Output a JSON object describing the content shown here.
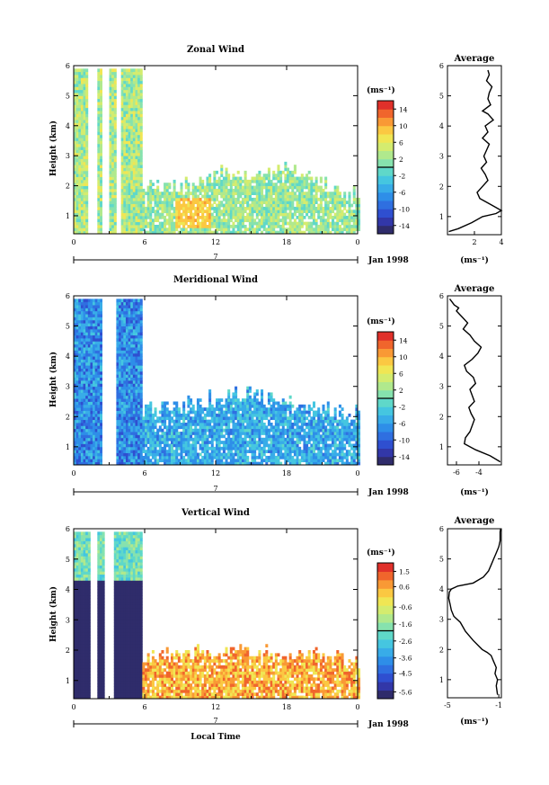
{
  "figure": {
    "xlabel": "Local Time",
    "date_label": "Jan 1998",
    "time_axis_marker": "7"
  },
  "chart_data": [
    {
      "type": "heatmap",
      "id": "zonal",
      "title": "Zonal Wind",
      "ylabel": "Height (km)",
      "xlabel": "Local Time",
      "x_ticks": [
        "0",
        "6",
        "12",
        "18",
        "0"
      ],
      "x_tick_values": [
        0,
        6,
        12,
        18,
        24
      ],
      "x_minor_ticks": [
        3,
        9,
        15,
        21
      ],
      "x_range": [
        0,
        24
      ],
      "y_ticks": [
        "1",
        "2",
        "3",
        "4",
        "5",
        "6"
      ],
      "y_tick_values": [
        1,
        2,
        3,
        4,
        5,
        6
      ],
      "y_range": [
        0.4,
        6
      ],
      "colorbar": {
        "unit": "(ms⁻¹)",
        "ticks": [
          "14",
          "10",
          "6",
          "2",
          "-2",
          "-6",
          "-10",
          "-14"
        ],
        "tick_values": [
          14,
          10,
          6,
          2,
          -2,
          -6,
          -10,
          -14
        ],
        "range": [
          -16,
          16
        ]
      },
      "typical_value_burst": 3,
      "typical_value_later": 2,
      "warm_patch": {
        "t_start": 8.5,
        "t_end": 11.5,
        "h_start": 0.6,
        "h_end": 1.6,
        "value": 9
      },
      "bursts": [
        [
          0.0,
          1.2
        ],
        [
          1.8,
          2.3
        ],
        [
          3.0,
          3.6
        ],
        [
          4.0,
          5.8
        ]
      ],
      "burst_top": 5.8,
      "later_top_profile": {
        "t": [
          6,
          9,
          12,
          15,
          18,
          21,
          24
        ],
        "h": [
          1.9,
          1.9,
          2.4,
          2.3,
          2.5,
          2.0,
          1.6
        ]
      }
    },
    {
      "type": "heatmap",
      "id": "meridional",
      "title": "Meridional Wind",
      "ylabel": "Height (km)",
      "xlabel": "Local Time",
      "x_ticks": [
        "0",
        "6",
        "12",
        "18",
        "0"
      ],
      "x_tick_values": [
        0,
        6,
        12,
        18,
        24
      ],
      "x_minor_ticks": [
        3,
        9,
        15,
        21
      ],
      "x_range": [
        0,
        24
      ],
      "y_ticks": [
        "1",
        "2",
        "3",
        "4",
        "5",
        "6"
      ],
      "y_tick_values": [
        1,
        2,
        3,
        4,
        5,
        6
      ],
      "y_range": [
        0.4,
        6
      ],
      "colorbar": {
        "unit": "(ms⁻¹)",
        "ticks": [
          "14",
          "10",
          "6",
          "2",
          "-2",
          "-6",
          "-10",
          "-14"
        ],
        "tick_values": [
          14,
          10,
          6,
          2,
          -2,
          -6,
          -10,
          -14
        ],
        "range": [
          -16,
          16
        ]
      },
      "typical_value_burst": -7,
      "typical_value_later": -5,
      "bursts": [
        [
          0.0,
          2.4
        ],
        [
          3.5,
          5.8
        ]
      ],
      "burst_top": 5.8,
      "later_top_profile": {
        "t": [
          6,
          9,
          12,
          15,
          18,
          21,
          24
        ],
        "h": [
          2.2,
          2.3,
          2.6,
          2.7,
          2.4,
          2.2,
          2.0
        ]
      }
    },
    {
      "type": "heatmap",
      "id": "vertical",
      "title": "Vertical Wind",
      "ylabel": "Height (km)",
      "xlabel": "Local Time",
      "x_ticks": [
        "0",
        "6",
        "12",
        "18",
        "0"
      ],
      "x_tick_values": [
        0,
        6,
        12,
        18,
        24
      ],
      "x_minor_ticks": [
        3,
        9,
        15,
        21
      ],
      "x_range": [
        0,
        24
      ],
      "y_ticks": [
        "1",
        "2",
        "3",
        "4",
        "5",
        "6"
      ],
      "y_tick_values": [
        1,
        2,
        3,
        4,
        5,
        6
      ],
      "y_range": [
        0.4,
        6
      ],
      "colorbar": {
        "unit": "(ms⁻¹)",
        "ticks": [
          "1.5",
          "0.6",
          "-0.6",
          "-1.6",
          "-2.6",
          "-3.6",
          "-4.5",
          "-5.6"
        ],
        "tick_values": [
          1.5,
          0.6,
          -0.6,
          -1.6,
          -2.6,
          -3.6,
          -4.5,
          -5.6
        ],
        "range": [
          -6.0,
          2.0
        ]
      },
      "typical_value_burst": -5.9,
      "typical_value_upper": -2.0,
      "typical_value_later": 0.3,
      "bursts": [
        [
          0.0,
          1.4
        ],
        [
          1.9,
          2.5
        ],
        [
          3.4,
          5.8
        ]
      ],
      "burst_top": 5.8,
      "later_top_profile": {
        "t": [
          6,
          9,
          12,
          15,
          18,
          21,
          24
        ],
        "h": [
          1.7,
          1.8,
          1.9,
          1.9,
          1.8,
          1.8,
          1.6
        ]
      }
    },
    {
      "type": "line",
      "id": "zonal_avg",
      "title": "Average",
      "xlabel": "(ms⁻¹)",
      "x_ticks": [
        "2",
        "4"
      ],
      "x_tick_values": [
        2,
        4
      ],
      "x_range": [
        0,
        4
      ],
      "y_ticks": [
        "1",
        "2",
        "3",
        "4",
        "5",
        "6"
      ],
      "y_tick_values": [
        1,
        2,
        3,
        4,
        5,
        6
      ],
      "y_range": [
        0.4,
        6
      ],
      "series": [
        {
          "x": [
            0.1,
            0.8,
            1.8,
            2.6,
            3.6,
            4.0,
            3.2,
            2.4,
            2.2,
            2.6,
            3.0,
            2.8,
            2.5,
            2.9,
            2.7,
            2.9,
            3.1,
            2.6,
            3.0,
            2.8,
            3.4,
            3.0,
            2.6,
            3.2,
            3.0,
            3.1,
            3.3,
            2.9,
            3.1,
            3.0
          ],
          "y": [
            0.5,
            0.6,
            0.8,
            1.0,
            1.1,
            1.2,
            1.4,
            1.6,
            1.8,
            2.0,
            2.2,
            2.4,
            2.6,
            2.8,
            3.0,
            3.2,
            3.4,
            3.6,
            3.8,
            4.0,
            4.2,
            4.4,
            4.5,
            4.7,
            4.9,
            5.1,
            5.3,
            5.5,
            5.7,
            5.85
          ]
        }
      ]
    },
    {
      "type": "line",
      "id": "meridional_avg",
      "title": "Average",
      "xlabel": "(ms⁻¹)",
      "x_ticks": [
        "-6",
        "-4"
      ],
      "x_tick_values": [
        -6,
        -4
      ],
      "x_range": [
        -6.8,
        -2.0
      ],
      "y_ticks": [
        "1",
        "2",
        "3",
        "4",
        "5",
        "6"
      ],
      "y_tick_values": [
        1,
        2,
        3,
        4,
        5,
        6
      ],
      "y_range": [
        0.4,
        6
      ],
      "series": [
        {
          "x": [
            -2.1,
            -3.0,
            -4.3,
            -5.3,
            -5.2,
            -4.8,
            -4.6,
            -4.4,
            -4.7,
            -4.9,
            -4.4,
            -4.6,
            -4.8,
            -4.3,
            -4.5,
            -5.1,
            -5.3,
            -4.6,
            -4.1,
            -3.8,
            -4.4,
            -4.8,
            -5.4,
            -5.0,
            -5.5,
            -6.0,
            -5.8,
            -6.2,
            -6.4,
            -6.6
          ],
          "y": [
            0.5,
            0.7,
            0.9,
            1.1,
            1.3,
            1.5,
            1.7,
            1.9,
            2.1,
            2.3,
            2.5,
            2.7,
            2.9,
            3.1,
            3.3,
            3.5,
            3.7,
            3.9,
            4.1,
            4.3,
            4.5,
            4.7,
            4.9,
            5.1,
            5.3,
            5.5,
            5.6,
            5.7,
            5.8,
            5.9
          ]
        }
      ]
    },
    {
      "type": "line",
      "id": "vertical_avg",
      "title": "Average",
      "xlabel": "(ms⁻¹)",
      "x_ticks": [
        "-5",
        "-1"
      ],
      "x_tick_values": [
        -5,
        -1
      ],
      "x_range": [
        -5.0,
        -0.8
      ],
      "y_ticks": [
        "1",
        "2",
        "3",
        "4",
        "5",
        "6"
      ],
      "y_tick_values": [
        1,
        2,
        3,
        4,
        5,
        6
      ],
      "y_range": [
        0.4,
        6
      ],
      "series": [
        {
          "x": [
            -1.1,
            -1.2,
            -1.1,
            -1.3,
            -1.2,
            -1.4,
            -1.6,
            -1.9,
            -2.3,
            -3.0,
            -3.6,
            -4.0,
            -4.5,
            -4.7,
            -4.8,
            -4.9,
            -4.85,
            -4.7,
            -4.2,
            -3.0,
            -2.2,
            -1.8,
            -1.6,
            -1.4,
            -1.2,
            -1.0,
            -0.9,
            -0.9,
            -0.9,
            -0.85
          ],
          "y": [
            0.5,
            0.8,
            1.0,
            1.2,
            1.4,
            1.6,
            1.8,
            1.9,
            2.0,
            2.3,
            2.6,
            2.9,
            3.1,
            3.3,
            3.5,
            3.7,
            3.9,
            4.0,
            4.1,
            4.2,
            4.4,
            4.6,
            4.8,
            5.0,
            5.2,
            5.4,
            5.6,
            5.8,
            5.9,
            6.0
          ]
        }
      ]
    }
  ]
}
